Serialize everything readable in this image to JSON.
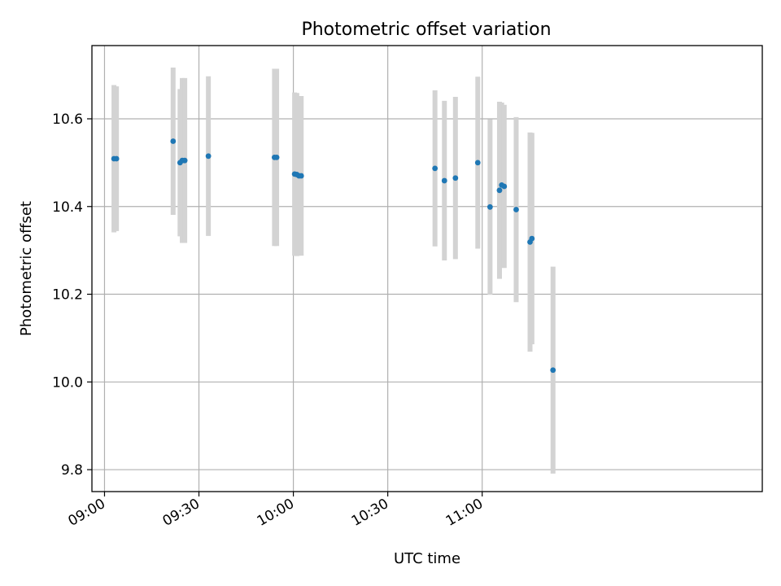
{
  "chart_data": {
    "type": "scatter",
    "title": "Photometric offset variation",
    "xlabel": "UTC time",
    "ylabel": "Photometric offset",
    "x_axis_type": "time",
    "x_range": [
      "08:56",
      "12:29"
    ],
    "ylim": [
      9.75,
      10.767
    ],
    "x_ticks": [
      "09:00",
      "09:30",
      "10:00",
      "10:30",
      "11:00"
    ],
    "y_ticks": [
      9.8,
      10.0,
      10.2,
      10.4,
      10.6
    ],
    "y_tick_labels": [
      "9.8",
      "10.0",
      "10.2",
      "10.4",
      "10.6"
    ],
    "grid": true,
    "marker_color": "#1f77b4",
    "errorbar_color": "#d3d3d3",
    "points": [
      {
        "t": "09:03.0",
        "y": 10.509,
        "err": 0.168
      },
      {
        "t": "09:03.8",
        "y": 10.509,
        "err": 0.165
      },
      {
        "t": "09:21.8",
        "y": 10.549,
        "err": 0.168
      },
      {
        "t": "09:24.0",
        "y": 10.5,
        "err": 0.168
      },
      {
        "t": "09:24.7",
        "y": 10.505,
        "err": 0.188
      },
      {
        "t": "09:25.5",
        "y": 10.505,
        "err": 0.188
      },
      {
        "t": "09:33.0",
        "y": 10.515,
        "err": 0.182
      },
      {
        "t": "09:54.0",
        "y": 10.512,
        "err": 0.202
      },
      {
        "t": "09:54.7",
        "y": 10.512,
        "err": 0.202
      },
      {
        "t": "10:00.4",
        "y": 10.474,
        "err": 0.186
      },
      {
        "t": "10:01.1",
        "y": 10.473,
        "err": 0.186
      },
      {
        "t": "10:01.8",
        "y": 10.47,
        "err": 0.182
      },
      {
        "t": "10:02.5",
        "y": 10.47,
        "err": 0.182
      },
      {
        "t": "10:45.0",
        "y": 10.487,
        "err": 0.178
      },
      {
        "t": "10:48.0",
        "y": 10.459,
        "err": 0.182
      },
      {
        "t": "10:51.5",
        "y": 10.465,
        "err": 0.185
      },
      {
        "t": "10:58.6",
        "y": 10.5,
        "err": 0.196
      },
      {
        "t": "11:02.5",
        "y": 10.399,
        "err": 0.2
      },
      {
        "t": "11:05.5",
        "y": 10.437,
        "err": 0.202
      },
      {
        "t": "11:06.2",
        "y": 10.449,
        "err": 0.188
      },
      {
        "t": "11:07.0",
        "y": 10.446,
        "err": 0.186
      },
      {
        "t": "11:10.8",
        "y": 10.393,
        "err": 0.211
      },
      {
        "t": "11:15.2",
        "y": 10.319,
        "err": 0.25
      },
      {
        "t": "11:15.8",
        "y": 10.327,
        "err": 0.241
      },
      {
        "t": "11:22.5",
        "y": 10.027,
        "err": 0.236
      }
    ]
  }
}
